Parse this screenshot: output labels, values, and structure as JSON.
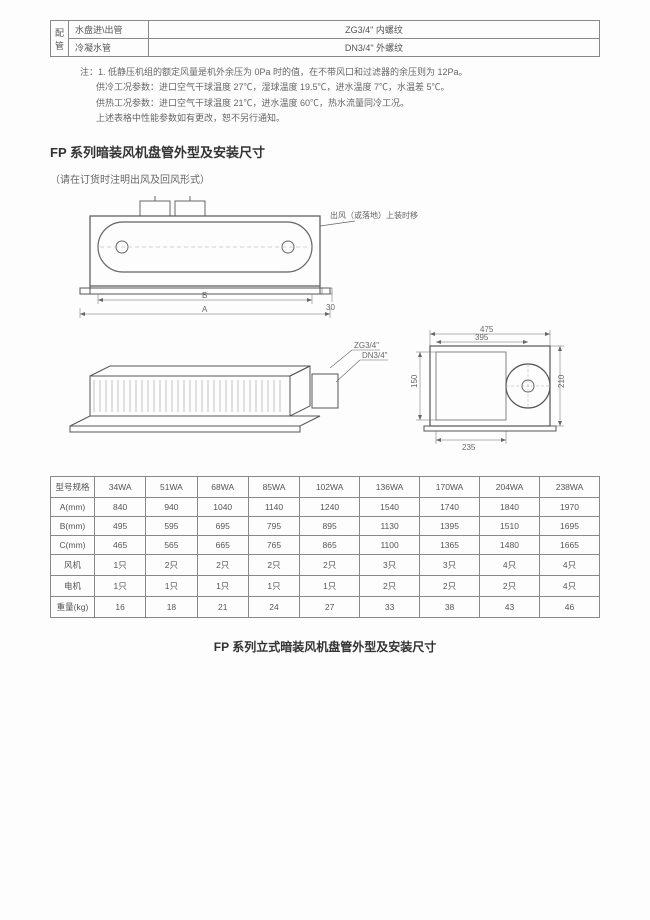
{
  "topTable": {
    "leftCell": "配管",
    "rows": [
      {
        "c1": "水盘进\\出管",
        "c2": "ZG3/4\"  内螺纹"
      },
      {
        "c1": "冷凝水管",
        "c2": "DN3/4\"  外螺纹"
      }
    ]
  },
  "notes": {
    "prefix": "注：",
    "line1": "1. 低静压机组的额定风量是机外余压为 0Pa 时的值，在不带风口和过滤器的余压则为 12Pa。",
    "line2": "供冷工况参数：进口空气干球温度 27℃，湿球温度 19.5℃，进水温度 7℃，水温差 5℃。",
    "line3": "供热工况参数：进口空气干球温度 21℃，进水温度 60℃，热水流量同冷工况。",
    "line4": "上述表格中性能参数如有更改，恕不另行通知。"
  },
  "section1Title": "FP 系列暗装风机盘管外型及安装尺寸",
  "section1Sub": "（请在订货时注明出风及回风形式）",
  "diagram": {
    "annot1": "出风（或落地）上装时移",
    "labelA": "A",
    "labelB": "B",
    "label30": "30",
    "zgLabel1": "ZG3/4\"",
    "zgLabel2": "DN3/4\"",
    "sideTop": "475",
    "sideInner": "395",
    "side210": "210",
    "side150": "150",
    "side235": "235"
  },
  "dimTable": {
    "headerFirst": "型号规格",
    "models": [
      "34WA",
      "51WA",
      "68WA",
      "85WA",
      "102WA",
      "136WA",
      "170WA",
      "204WA",
      "238WA"
    ],
    "rows": [
      {
        "label": "A(mm)",
        "vals": [
          "840",
          "940",
          "1040",
          "1140",
          "1240",
          "1540",
          "1740",
          "1840",
          "1970"
        ]
      },
      {
        "label": "B(mm)",
        "vals": [
          "495",
          "595",
          "695",
          "795",
          "895",
          "1130",
          "1395",
          "1510",
          "1695"
        ]
      },
      {
        "label": "C(mm)",
        "vals": [
          "465",
          "565",
          "665",
          "765",
          "865",
          "1100",
          "1365",
          "1480",
          "1665"
        ]
      },
      {
        "label": "风机",
        "vals": [
          "1只",
          "2只",
          "2只",
          "2只",
          "2只",
          "3只",
          "3只",
          "4只",
          "4只"
        ]
      },
      {
        "label": "电机",
        "vals": [
          "1只",
          "1只",
          "1只",
          "1只",
          "1只",
          "2只",
          "2只",
          "2只",
          "4只"
        ]
      },
      {
        "label": "重量(kg)",
        "vals": [
          "16",
          "18",
          "21",
          "24",
          "27",
          "33",
          "38",
          "43",
          "46"
        ]
      }
    ]
  },
  "section2Title": "FP 系列立式暗装风机盘管外型及安装尺寸"
}
